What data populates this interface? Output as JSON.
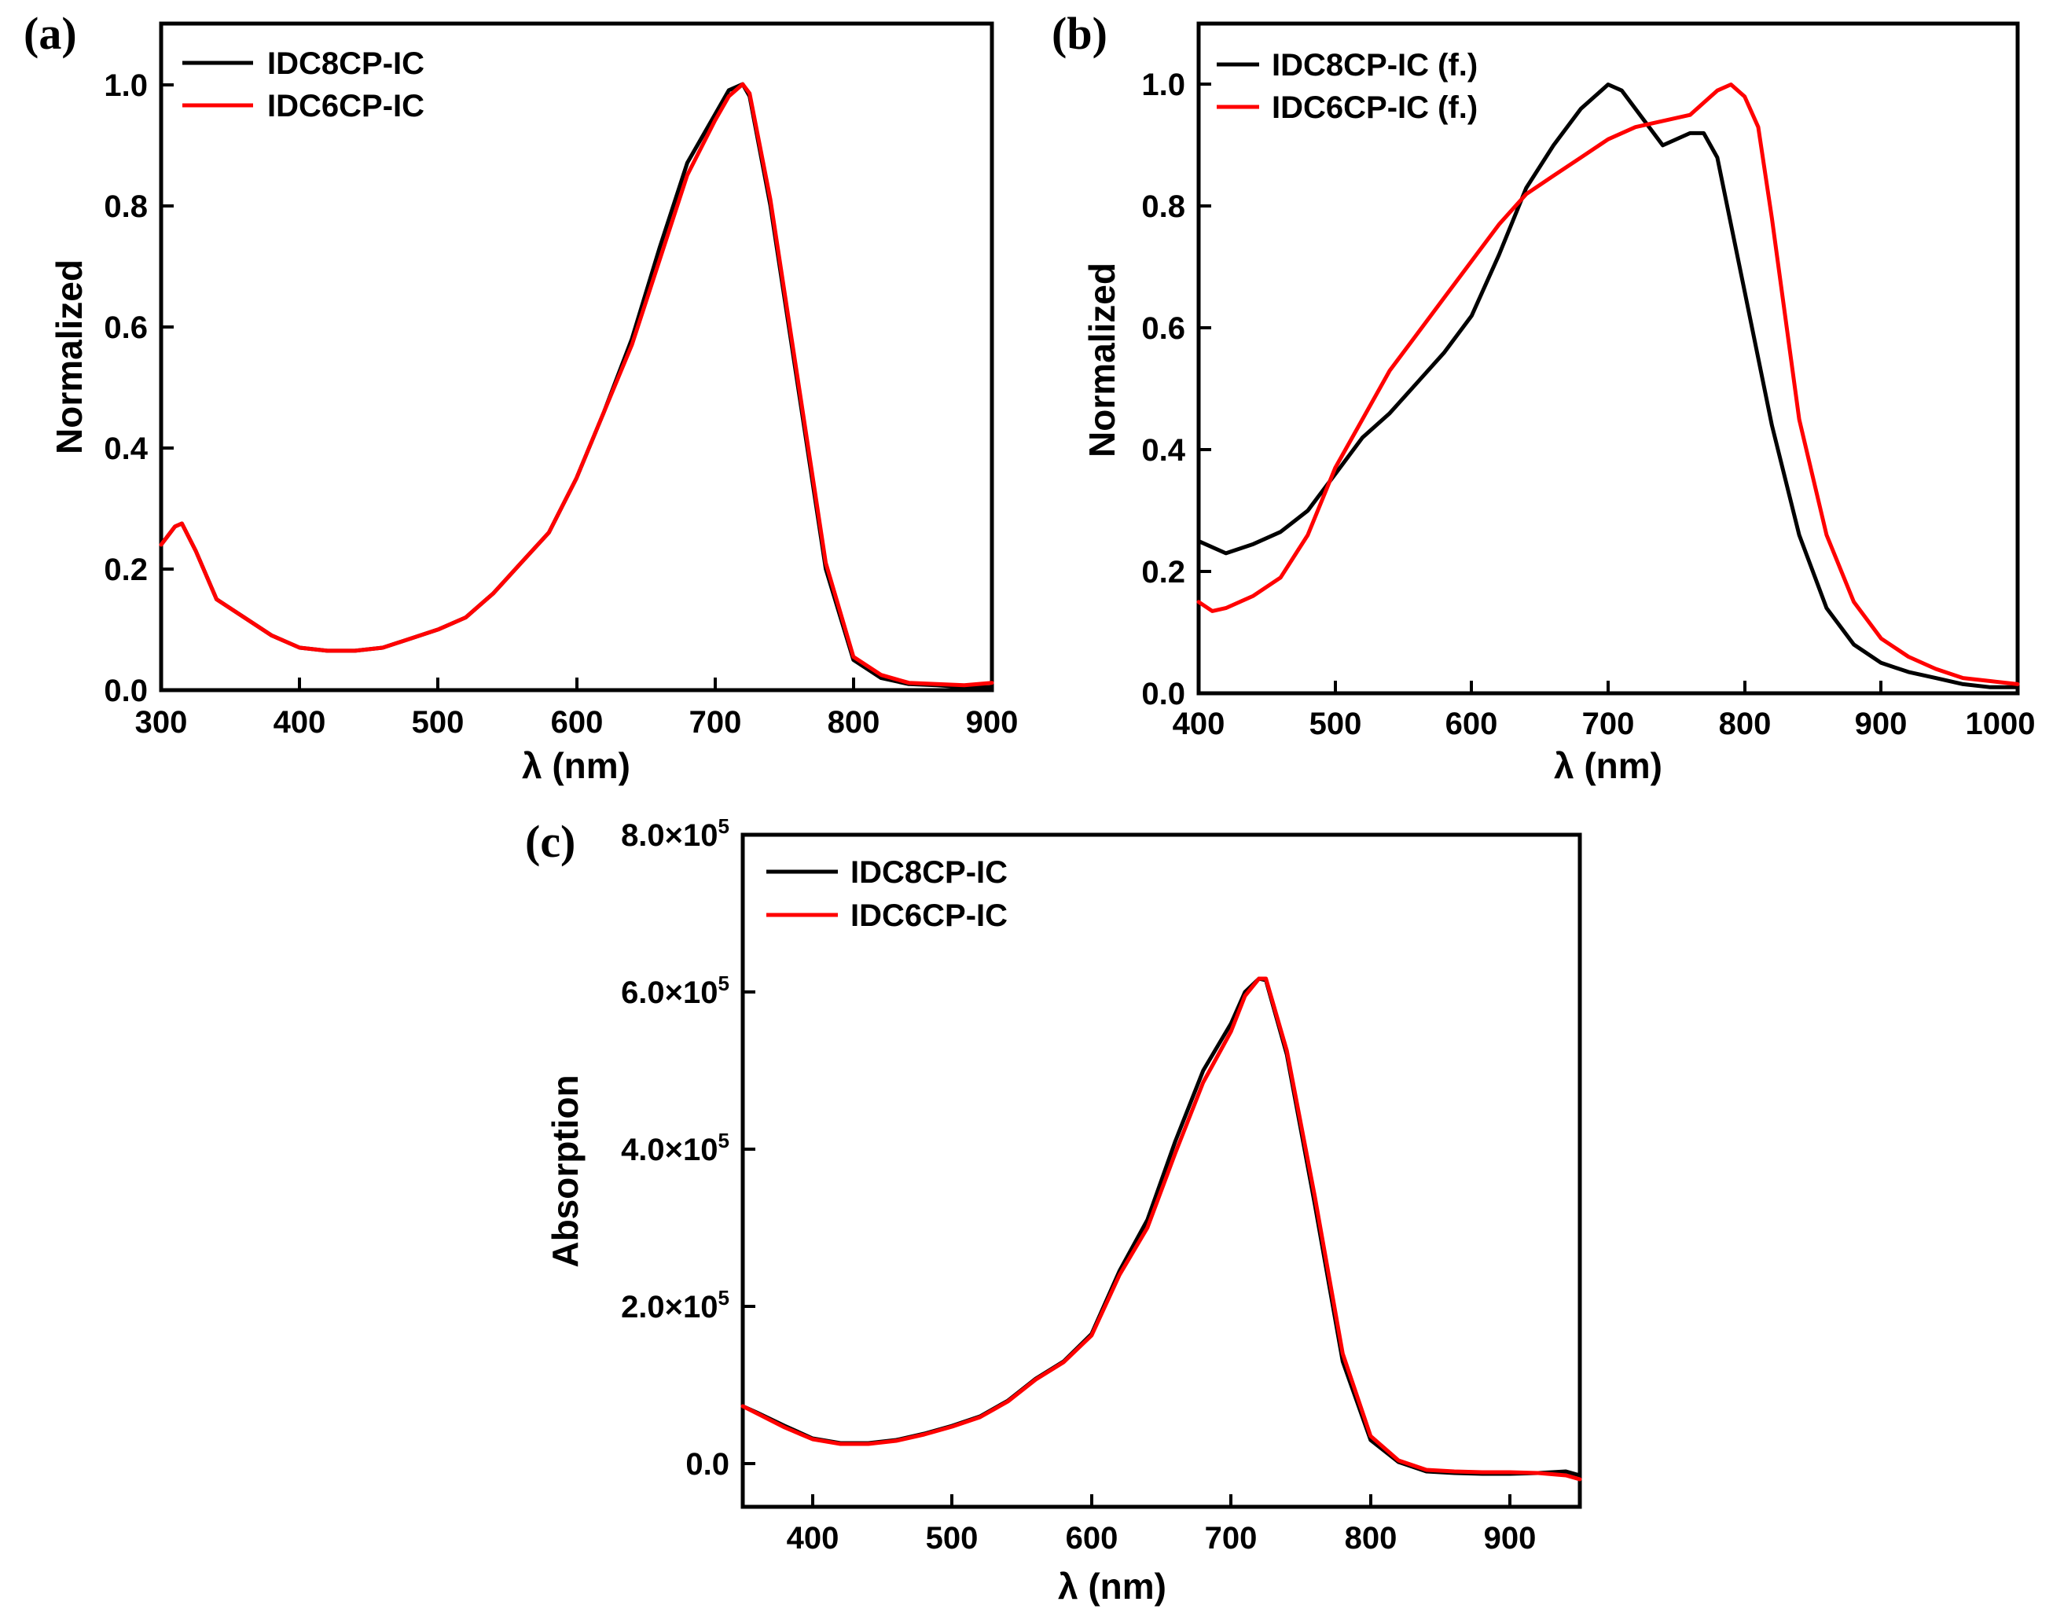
{
  "chart_data": [
    {
      "panel": "(a)",
      "type": "line",
      "xlabel": "λ (nm)",
      "ylabel": "Normalized",
      "xlim": [
        300,
        900
      ],
      "ylim": [
        0,
        1.1
      ],
      "xticks": [
        300,
        400,
        500,
        600,
        700,
        800,
        900
      ],
      "xtick_labels": [
        "300",
        "400",
        "500",
        "600",
        "700",
        "800",
        "900"
      ],
      "yticks": [
        0,
        0.2,
        0.4,
        0.6,
        0.8,
        1.0
      ],
      "ytick_labels": [
        "0.0",
        "0.2",
        "0.4",
        "0.6",
        "0.8",
        "1.0"
      ],
      "legend_position": "top-left",
      "series": [
        {
          "name": "IDC8CP-IC",
          "color": "#000000",
          "x": [
            300,
            310,
            315,
            325,
            340,
            360,
            380,
            400,
            420,
            440,
            460,
            480,
            500,
            520,
            540,
            560,
            580,
            600,
            620,
            640,
            660,
            680,
            700,
            710,
            720,
            725,
            740,
            760,
            780,
            800,
            820,
            840,
            860,
            880,
            900
          ],
          "y": [
            0.24,
            0.27,
            0.275,
            0.23,
            0.15,
            0.12,
            0.09,
            0.07,
            0.065,
            0.065,
            0.07,
            0.085,
            0.1,
            0.12,
            0.16,
            0.21,
            0.26,
            0.35,
            0.46,
            0.58,
            0.73,
            0.87,
            0.95,
            0.99,
            1.0,
            0.98,
            0.8,
            0.5,
            0.2,
            0.05,
            0.02,
            0.01,
            0.008,
            0.005,
            0.005
          ]
        },
        {
          "name": "IDC6CP-IC",
          "color": "#ff0000",
          "x": [
            300,
            310,
            315,
            325,
            340,
            360,
            380,
            400,
            420,
            440,
            460,
            480,
            500,
            520,
            540,
            560,
            580,
            600,
            620,
            640,
            660,
            680,
            700,
            710,
            720,
            725,
            740,
            760,
            780,
            800,
            820,
            840,
            860,
            880,
            900
          ],
          "y": [
            0.24,
            0.27,
            0.275,
            0.23,
            0.15,
            0.12,
            0.09,
            0.07,
            0.065,
            0.065,
            0.07,
            0.085,
            0.1,
            0.12,
            0.16,
            0.21,
            0.26,
            0.35,
            0.46,
            0.57,
            0.71,
            0.85,
            0.94,
            0.98,
            1.0,
            0.985,
            0.81,
            0.51,
            0.21,
            0.055,
            0.025,
            0.012,
            0.01,
            0.008,
            0.012
          ]
        }
      ]
    },
    {
      "panel": "(b)",
      "type": "line",
      "xlabel": "λ (nm)",
      "ylabel": "Normalized",
      "xlim": [
        400,
        1000
      ],
      "ylim": [
        0,
        1.1
      ],
      "xticks": [
        400,
        500,
        600,
        700,
        800,
        900,
        1000
      ],
      "xtick_labels": [
        "400",
        "500",
        "600",
        "700",
        "800",
        "900",
        "1000"
      ],
      "yticks": [
        0,
        0.2,
        0.4,
        0.6,
        0.8,
        1.0
      ],
      "ytick_labels": [
        "0.0",
        "0.2",
        "0.4",
        "0.6",
        "0.8",
        "1.0"
      ],
      "legend_position": "top-left",
      "series": [
        {
          "name": "IDC8CP-IC (f.)",
          "color": "#000000",
          "x": [
            400,
            420,
            440,
            460,
            480,
            500,
            520,
            540,
            560,
            580,
            600,
            620,
            640,
            660,
            680,
            700,
            710,
            720,
            740,
            760,
            770,
            780,
            800,
            820,
            840,
            860,
            880,
            900,
            920,
            940,
            960,
            980,
            1000
          ],
          "y": [
            0.25,
            0.23,
            0.245,
            0.265,
            0.3,
            0.36,
            0.42,
            0.46,
            0.51,
            0.56,
            0.62,
            0.72,
            0.83,
            0.9,
            0.96,
            1.0,
            0.99,
            0.96,
            0.9,
            0.92,
            0.92,
            0.88,
            0.66,
            0.44,
            0.26,
            0.14,
            0.08,
            0.05,
            0.035,
            0.025,
            0.015,
            0.01,
            0.01
          ]
        },
        {
          "name": "IDC6CP-IC (f.)",
          "color": "#ff0000",
          "x": [
            400,
            410,
            420,
            440,
            460,
            480,
            500,
            520,
            540,
            560,
            580,
            600,
            620,
            640,
            660,
            680,
            700,
            720,
            740,
            760,
            780,
            790,
            800,
            810,
            820,
            840,
            860,
            880,
            900,
            920,
            940,
            960,
            980,
            1000
          ],
          "y": [
            0.15,
            0.135,
            0.14,
            0.16,
            0.19,
            0.26,
            0.37,
            0.45,
            0.53,
            0.59,
            0.65,
            0.71,
            0.77,
            0.82,
            0.85,
            0.88,
            0.91,
            0.93,
            0.94,
            0.95,
            0.99,
            1.0,
            0.98,
            0.93,
            0.78,
            0.45,
            0.26,
            0.15,
            0.09,
            0.06,
            0.04,
            0.025,
            0.02,
            0.015
          ]
        }
      ]
    },
    {
      "panel": "(c)",
      "type": "line",
      "xlabel": "λ (nm)",
      "ylabel": "Absorption",
      "xlim": [
        350,
        950
      ],
      "ylim": [
        -55000,
        800000
      ],
      "xticks": [
        400,
        500,
        600,
        700,
        800,
        900
      ],
      "xtick_labels": [
        "400",
        "500",
        "600",
        "700",
        "800",
        "900"
      ],
      "yticks": [
        0,
        200000,
        400000,
        600000,
        800000
      ],
      "ytick_labels": [
        {
          "mantissa": "0.0",
          "exp": ""
        },
        {
          "mantissa": "2.0×10",
          "exp": "5"
        },
        {
          "mantissa": "4.0×10",
          "exp": "5"
        },
        {
          "mantissa": "6.0×10",
          "exp": "5"
        },
        {
          "mantissa": "8.0×10",
          "exp": "5"
        }
      ],
      "legend_position": "top-left",
      "series": [
        {
          "name": "IDC8CP-IC",
          "color": "#000000",
          "x": [
            350,
            360,
            380,
            400,
            420,
            440,
            460,
            480,
            500,
            520,
            540,
            560,
            580,
            600,
            620,
            640,
            660,
            680,
            700,
            710,
            720,
            725,
            740,
            760,
            780,
            800,
            820,
            840,
            860,
            880,
            900,
            920,
            940,
            950
          ],
          "y": [
            73000,
            65000,
            48000,
            32000,
            26000,
            26000,
            30000,
            38000,
            48000,
            60000,
            80000,
            108000,
            130000,
            165000,
            245000,
            310000,
            410000,
            500000,
            560000,
            600000,
            617000,
            615000,
            520000,
            330000,
            130000,
            30000,
            2000,
            -10000,
            -12000,
            -13000,
            -13000,
            -12000,
            -10000,
            -15000
          ]
        },
        {
          "name": "IDC6CP-IC",
          "color": "#ff0000",
          "x": [
            350,
            360,
            380,
            400,
            420,
            440,
            460,
            480,
            500,
            520,
            540,
            560,
            580,
            600,
            620,
            640,
            660,
            680,
            700,
            710,
            720,
            725,
            740,
            760,
            780,
            800,
            820,
            840,
            860,
            880,
            900,
            920,
            940,
            950
          ],
          "y": [
            73000,
            64000,
            46000,
            31000,
            25000,
            25000,
            29000,
            37000,
            47000,
            59000,
            79000,
            107000,
            129000,
            163000,
            240000,
            300000,
            395000,
            485000,
            550000,
            595000,
            617000,
            617000,
            525000,
            340000,
            140000,
            35000,
            4000,
            -8000,
            -10000,
            -11000,
            -11000,
            -12000,
            -15000,
            -20000
          ]
        }
      ]
    }
  ]
}
